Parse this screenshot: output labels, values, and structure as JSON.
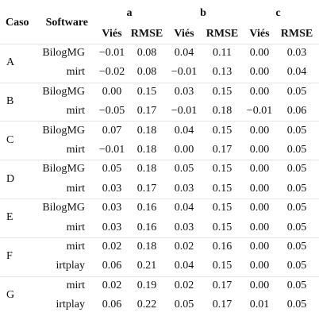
{
  "header": {
    "caso": "Caso",
    "software": "Software",
    "groups": [
      "a",
      "b",
      "c"
    ],
    "metrics": [
      "Viés",
      "RMSE",
      "Viés",
      "RMSE",
      "Viés",
      "RMSE"
    ]
  },
  "cases": [
    {
      "caso": "A",
      "rows": [
        {
          "software": "BilogMG",
          "values": [
            "−0.01",
            "0.08",
            "0.04",
            "0.11",
            "0.00",
            "0.03"
          ]
        },
        {
          "software": "mirt",
          "values": [
            "−0.02",
            "0.08",
            "−0.01",
            "0.13",
            "0.00",
            "0.04"
          ]
        }
      ]
    },
    {
      "caso": "B",
      "rows": [
        {
          "software": "BilogMG",
          "values": [
            "0.00",
            "0.15",
            "0.03",
            "0.15",
            "0.00",
            "0.05"
          ]
        },
        {
          "software": "mirt",
          "values": [
            "−0.05",
            "0.17",
            "−0.01",
            "0.18",
            "−0.01",
            "0.06"
          ]
        }
      ]
    },
    {
      "caso": "C",
      "rows": [
        {
          "software": "BilogMG",
          "values": [
            "0.07",
            "0.18",
            "0.04",
            "0.15",
            "0.00",
            "0.05"
          ]
        },
        {
          "software": "mirt",
          "values": [
            "−0.01",
            "0.18",
            "0.00",
            "0.17",
            "0.00",
            "0.05"
          ]
        }
      ]
    },
    {
      "caso": "D",
      "rows": [
        {
          "software": "BilogMG",
          "values": [
            "0.05",
            "0.18",
            "0.05",
            "0.15",
            "0.00",
            "0.05"
          ]
        },
        {
          "software": "mirt",
          "values": [
            "0.03",
            "0.17",
            "0.03",
            "0.15",
            "0.00",
            "0.05"
          ]
        }
      ]
    },
    {
      "caso": "E",
      "rows": [
        {
          "software": "BilogMG",
          "values": [
            "0.03",
            "0.16",
            "0.04",
            "0.15",
            "0.00",
            "0.05"
          ]
        },
        {
          "software": "mirt",
          "values": [
            "0.03",
            "0.16",
            "0.03",
            "0.15",
            "0.00",
            "0.05"
          ]
        }
      ]
    },
    {
      "caso": "F",
      "rows": [
        {
          "software": "mirt",
          "values": [
            "0.02",
            "0.18",
            "0.02",
            "0.16",
            "0.00",
            "0.05"
          ]
        },
        {
          "software": "irtplay",
          "values": [
            "0.06",
            "0.21",
            "0.04",
            "0.15",
            "0.00",
            "0.05"
          ]
        }
      ]
    },
    {
      "caso": "G",
      "rows": [
        {
          "software": "mirt",
          "values": [
            "0.02",
            "0.19",
            "0.02",
            "0.17",
            "0.00",
            "0.05"
          ]
        },
        {
          "software": "irtplay",
          "values": [
            "0.06",
            "0.22",
            "0.05",
            "0.17",
            "0.01",
            "0.05"
          ]
        }
      ]
    }
  ]
}
